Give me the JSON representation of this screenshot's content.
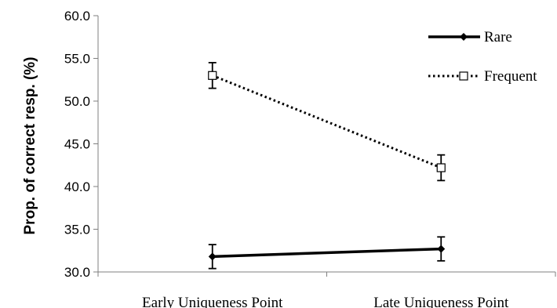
{
  "chart_data": {
    "type": "line",
    "categories": [
      "Early Uniqueness Point",
      "Late Uniqueness Point"
    ],
    "series": [
      {
        "name": "Rare",
        "values": [
          31.8,
          32.7
        ],
        "error": [
          1.4,
          1.4
        ],
        "style": "solid",
        "marker": "diamond-filled",
        "color": "#000000"
      },
      {
        "name": "Frequent",
        "values": [
          53.0,
          42.2
        ],
        "error": [
          1.5,
          1.5
        ],
        "style": "dotted",
        "marker": "square-open",
        "color": "#000000"
      }
    ],
    "title": "",
    "xlabel": "",
    "ylabel": "Prop. of correct resp. (%)",
    "ylim": [
      30.0,
      60.0
    ],
    "yticks": [
      "30.0",
      "35.0",
      "40.0",
      "45.0",
      "50.0",
      "55.0",
      "60.0"
    ],
    "grid": false,
    "legend_position": "top-right"
  }
}
